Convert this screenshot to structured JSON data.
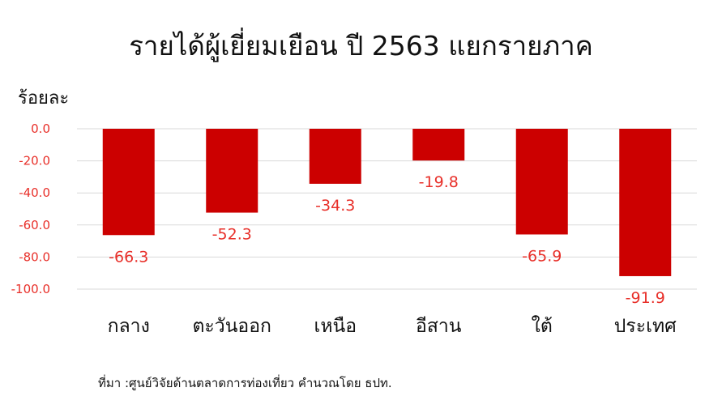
{
  "chart_data": {
    "type": "bar",
    "title": "รายได้ผู้เยี่ยมเยือน ปี 2563 แยกรายภาค",
    "ylabel": "ร้อยละ",
    "categories": [
      "กลาง",
      "ตะวันออก",
      "เหนือ",
      "อีสาน",
      "ใต้",
      "ประเทศ"
    ],
    "values": [
      -66.3,
      -52.3,
      -34.3,
      -19.8,
      -65.9,
      -91.9
    ],
    "value_labels": [
      "-66.3",
      "-52.3",
      "-34.3",
      "-19.8",
      "-65.9",
      "-91.9"
    ],
    "yticks": [
      "0.0",
      "-20.0",
      "-40.0",
      "-60.0",
      "-80.0",
      "-100.0"
    ],
    "ylim": [
      -100,
      0
    ],
    "grid": true,
    "colors": {
      "bar": "#cc0000",
      "value_label": "#e8302a",
      "grid": "#d9d9d9",
      "tick": "#e8302a"
    }
  },
  "source": "ที่มา :ศูนย์วิจัยด้านตลาดการท่องเที่ยว คำนวณโดย ธปท."
}
